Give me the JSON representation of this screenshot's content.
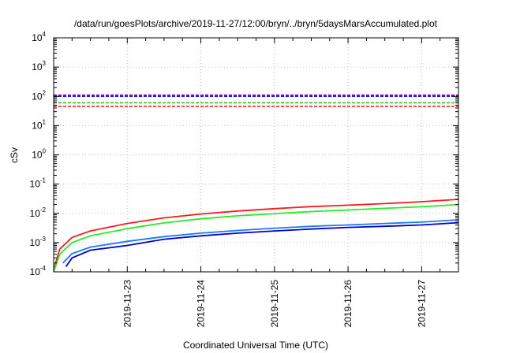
{
  "chart_data": {
    "type": "line",
    "title": "/data/run/goesPlots/archive/2019-11-27/12:00/bryn/../bryn/5daysMarsAccumulated.plot",
    "xlabel": "Coordinated Universal Time (UTC)",
    "ylabel": "cSv",
    "yscale": "log",
    "ylim": [
      0.0001,
      10000
    ],
    "xlim": [
      "2019-11-22T00:00",
      "2019-11-27T12:00"
    ],
    "y_ticks": [
      {
        "base": "10",
        "exp": "-4",
        "value": 0.0001
      },
      {
        "base": "10",
        "exp": "-3",
        "value": 0.001
      },
      {
        "base": "10",
        "exp": "-2",
        "value": 0.01
      },
      {
        "base": "10",
        "exp": "-1",
        "value": 0.1
      },
      {
        "base": "10",
        "exp": "0",
        "value": 1
      },
      {
        "base": "10",
        "exp": "1",
        "value": 10
      },
      {
        "base": "10",
        "exp": "2",
        "value": 100
      },
      {
        "base": "10",
        "exp": "3",
        "value": 1000
      },
      {
        "base": "10",
        "exp": "4",
        "value": 10000
      }
    ],
    "x_ticks": [
      {
        "label": "2019-11-23",
        "value": "2019-11-23T00:00"
      },
      {
        "label": "2019-11-24",
        "value": "2019-11-24T00:00"
      },
      {
        "label": "2019-11-25",
        "value": "2019-11-25T00:00"
      },
      {
        "label": "2019-11-26",
        "value": "2019-11-26T00:00"
      },
      {
        "label": "2019-11-27",
        "value": "2019-11-27T00:00"
      }
    ],
    "grid": true,
    "thresholds": [
      {
        "value": 110,
        "color": "#9400d3"
      },
      {
        "value": 100,
        "color": "#1a1aff"
      },
      {
        "value": 60,
        "color": "#22cc22"
      },
      {
        "value": 45,
        "color": "#ff1a1a"
      }
    ],
    "series": [
      {
        "color": "#ff1a1a",
        "x": [
          "2019-11-22T00:00",
          "2019-11-22T02:00",
          "2019-11-22T06:00",
          "2019-11-22T12:00",
          "2019-11-23T00:00",
          "2019-11-23T12:00",
          "2019-11-24T00:00",
          "2019-11-24T12:00",
          "2019-11-25T00:00",
          "2019-11-25T12:00",
          "2019-11-26T00:00",
          "2019-11-26T12:00",
          "2019-11-27T00:00",
          "2019-11-27T12:00"
        ],
        "y": [
          0.00012,
          0.0006,
          0.0015,
          0.0025,
          0.0045,
          0.007,
          0.0095,
          0.012,
          0.0145,
          0.017,
          0.019,
          0.0215,
          0.025,
          0.03
        ]
      },
      {
        "color": "#22ee22",
        "x": [
          "2019-11-22T00:00",
          "2019-11-22T02:00",
          "2019-11-22T06:00",
          "2019-11-22T12:00",
          "2019-11-23T00:00",
          "2019-11-23T12:00",
          "2019-11-24T00:00",
          "2019-11-24T12:00",
          "2019-11-25T00:00",
          "2019-11-25T12:00",
          "2019-11-26T00:00",
          "2019-11-26T12:00",
          "2019-11-27T00:00",
          "2019-11-27T12:00"
        ],
        "y": [
          0.0001,
          0.0004,
          0.001,
          0.0017,
          0.003,
          0.0047,
          0.0065,
          0.0082,
          0.0098,
          0.0115,
          0.013,
          0.0148,
          0.0168,
          0.02
        ]
      },
      {
        "color": "#1e78ff",
        "x": [
          "2019-11-22T03:00",
          "2019-11-22T06:00",
          "2019-11-22T12:00",
          "2019-11-23T00:00",
          "2019-11-23T12:00",
          "2019-11-24T00:00",
          "2019-11-24T12:00",
          "2019-11-25T00:00",
          "2019-11-25T12:00",
          "2019-11-26T00:00",
          "2019-11-26T12:00",
          "2019-11-27T00:00",
          "2019-11-27T12:00"
        ],
        "y": [
          0.0002,
          0.00042,
          0.0007,
          0.0011,
          0.0016,
          0.0021,
          0.0026,
          0.0031,
          0.0036,
          0.004,
          0.0045,
          0.005,
          0.006
        ]
      },
      {
        "color": "#0000cc",
        "x": [
          "2019-11-22T04:00",
          "2019-11-22T06:00",
          "2019-11-22T12:00",
          "2019-11-23T00:00",
          "2019-11-23T12:00",
          "2019-11-24T00:00",
          "2019-11-24T12:00",
          "2019-11-25T00:00",
          "2019-11-25T12:00",
          "2019-11-26T00:00",
          "2019-11-26T12:00",
          "2019-11-27T00:00",
          "2019-11-27T12:00"
        ],
        "y": [
          0.00015,
          0.0003,
          0.00055,
          0.0008,
          0.0013,
          0.0017,
          0.0021,
          0.0025,
          0.0029,
          0.0033,
          0.0036,
          0.004,
          0.0048
        ]
      }
    ]
  }
}
